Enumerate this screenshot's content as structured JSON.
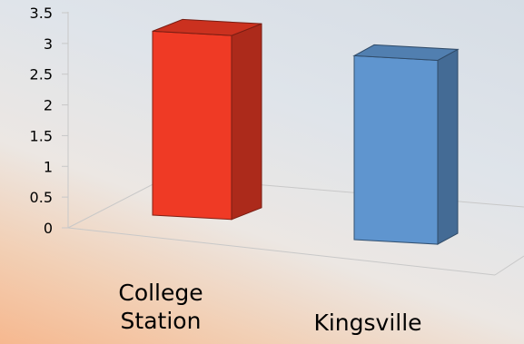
{
  "chart_data": {
    "type": "bar",
    "style": "3d",
    "categories": [
      "College Station",
      "Kingsville"
    ],
    "category_lines": [
      [
        "College",
        "Station"
      ],
      [
        "Kingsville"
      ]
    ],
    "values": [
      3.2,
      3.2
    ],
    "colors": [
      "#ef3a25",
      "#5f95cf"
    ],
    "yticks": [
      "0",
      "0.5",
      "1",
      "1.5",
      "2",
      "2.5",
      "3",
      "3.5"
    ],
    "ylim": [
      0,
      3.5
    ],
    "title": "",
    "xlabel": "",
    "ylabel": "",
    "grid": false,
    "legend": "none"
  }
}
